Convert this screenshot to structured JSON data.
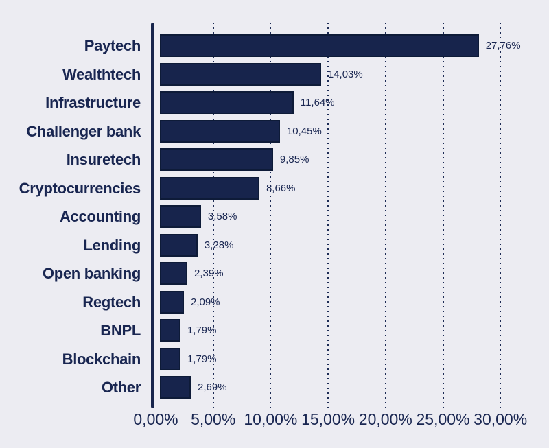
{
  "chart_data": {
    "type": "bar",
    "orientation": "horizontal",
    "title": "",
    "categories": [
      "Paytech",
      "Wealthtech",
      "Infrastructure",
      "Challenger bank",
      "Insuretech",
      "Cryptocurrencies",
      "Accounting",
      "Lending",
      "Open banking",
      "Regtech",
      "BNPL",
      "Blockchain",
      "Other"
    ],
    "values": [
      27.76,
      14.03,
      11.64,
      10.45,
      9.85,
      8.66,
      3.58,
      3.28,
      2.39,
      2.09,
      1.79,
      1.79,
      2.69
    ],
    "value_labels": [
      "27,76%",
      "14,03%",
      "11,64%",
      "10,45%",
      "9,85%",
      "8,66%",
      "3,58%",
      "3,28%",
      "2,39%",
      "2,09%",
      "1,79%",
      "1,79%",
      "2,69%"
    ],
    "x_ticks": [
      0,
      5,
      10,
      15,
      20,
      25,
      30
    ],
    "x_tick_labels": [
      "0,00%",
      "5,00%",
      "10,00%",
      "15,00%",
      "20,00%",
      "25,00%",
      "30,00%"
    ],
    "xlim": [
      0,
      30
    ],
    "xlabel": "",
    "ylabel": "",
    "grid": "vertical-dotted",
    "legend": "none"
  },
  "colors": {
    "background": "#ececf2",
    "bar_fill": "#17244c",
    "bar_border": "#0e1b38",
    "text": "#192651",
    "grid": "#1c2b55",
    "axis_line": "#17244c"
  }
}
